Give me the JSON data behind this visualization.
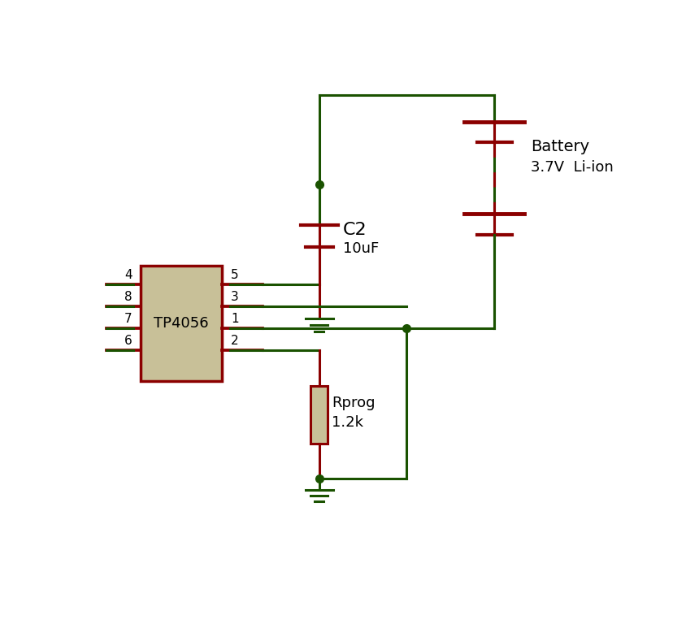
{
  "bg_color": "#ffffff",
  "wire_color": "#1a5200",
  "component_color": "#8b0000",
  "ic_fill": "#c8c098",
  "ic_border": "#8b0000",
  "resistor_fill": "#c8c098",
  "text_color_black": "#000000",
  "text_color_black2": "#1a1a00",
  "ic_label": "TP4056",
  "c2_label": "C2",
  "c2_value": "10uF",
  "battery_label": "Battery",
  "battery_value": "3.7V  Li-ion",
  "rprog_label": "Rprog",
  "rprog_value": "1.2k",
  "pin_labels_left": [
    "4",
    "8",
    "7",
    "6"
  ],
  "pin_labels_right": [
    "5",
    "3",
    "1",
    "2"
  ]
}
